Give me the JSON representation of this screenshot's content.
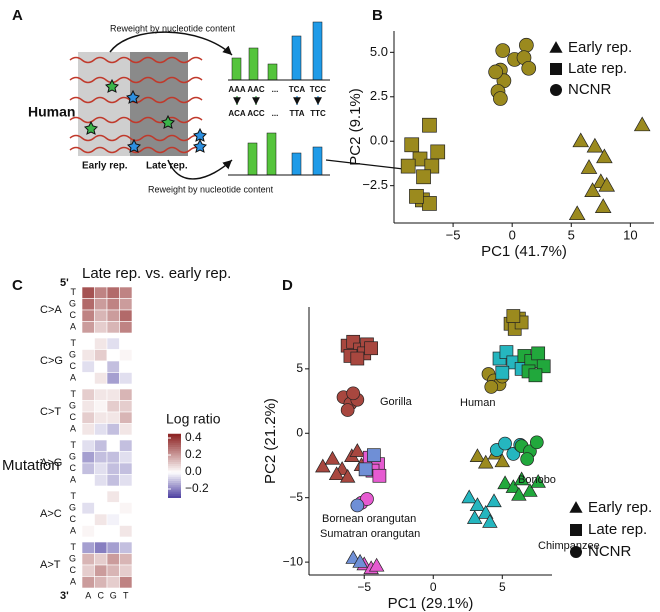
{
  "panel_labels": [
    "A",
    "B",
    "C",
    "D"
  ],
  "diagram": {
    "species": "Human",
    "early": "Early rep.",
    "late": "Late rep.",
    "reweight_top": "Reweight by nucleotide content",
    "reweight_bottom": "Reweight by nucleotide content",
    "contexts_top": [
      "AAA",
      "AAC",
      "...",
      "TCA",
      "TCC"
    ],
    "contexts_bottom": [
      "ACA",
      "ACC",
      "...",
      "TTA",
      "TTC"
    ]
  },
  "chart_data": [
    {
      "type": "scatter",
      "xlabel": "PC1 (41.7%)",
      "ylabel": "PC2 (9.1%)",
      "xlim": [
        -10,
        12
      ],
      "ylim": [
        -4.6,
        6.2
      ],
      "xticks": [
        {
          "value": -5,
          "label": "−5"
        },
        0,
        5,
        10
      ],
      "yticks": [
        {
          "value": -2.5,
          "label": "−2.5"
        },
        {
          "value": 0,
          "label": "0.0"
        },
        2.5,
        {
          "value": 5,
          "label": "5.0"
        }
      ],
      "legend": [
        {
          "name": "Early rep.",
          "marker": "triangle"
        },
        {
          "name": "Late rep.",
          "marker": "square"
        },
        {
          "name": "NCNR",
          "marker": "circle"
        }
      ],
      "series": [
        {
          "color": "#9b8a1e",
          "triangle": {
            "x": [
              11,
              5.8,
              7,
              7.8,
              6.5,
              7.5,
              6.8,
              8.0,
              7.7,
              5.5
            ],
            "y": [
              0.9,
              0,
              -0.3,
              -0.9,
              -1.5,
              -2.3,
              -2.8,
              -2.5,
              -3.7,
              -4.1
            ]
          },
          "square": {
            "x": [
              -7,
              -8.5,
              -7.8,
              -6.3,
              -6.8,
              -7.5,
              -8.8,
              -7.6,
              -7.0,
              -8.1
            ],
            "y": [
              0.9,
              -0.2,
              -1.0,
              -0.6,
              -1.4,
              -2.0,
              -1.4,
              -3.3,
              -3.5,
              -3.1
            ]
          },
          "circle": {
            "x": [
              -0.8,
              0.2,
              1.2,
              1.0,
              -1.0,
              -0.7,
              -1.2,
              -1.0,
              -1.4,
              1.4
            ],
            "y": [
              5.1,
              4.6,
              5.4,
              4.7,
              4.0,
              3.4,
              2.8,
              2.4,
              3.9,
              4.1
            ]
          }
        }
      ]
    },
    {
      "type": "heatmap",
      "title": "Late rep. vs. early rep.",
      "ylabel": "Mutation",
      "five_prime": "5'",
      "three_prime": "3'",
      "rows": [
        "C>A",
        "C>G",
        "C>T",
        "A>G",
        "A>C",
        "A>T"
      ],
      "row_contexts": [
        "T",
        "G",
        "C",
        "A"
      ],
      "columns": [
        "A",
        "C",
        "G",
        "T"
      ],
      "values": [
        [
          [
            0.35,
            0.25,
            0.3,
            0.25
          ],
          [
            0.3,
            0.2,
            0.25,
            0.2
          ],
          [
            0.25,
            0.15,
            0.2,
            0.3
          ],
          [
            0.2,
            0.1,
            0.15,
            0.25
          ]
        ],
        [
          [
            0.0,
            0.05,
            -0.05,
            0.0
          ],
          [
            0.05,
            0.1,
            0.0,
            0.02
          ],
          [
            -0.05,
            0.0,
            -0.1,
            0.0
          ],
          [
            0.0,
            0.05,
            -0.15,
            -0.05
          ]
        ],
        [
          [
            0.1,
            0.05,
            0.05,
            0.15
          ],
          [
            0.05,
            0.02,
            0.1,
            0.1
          ],
          [
            0.1,
            0.05,
            0.05,
            0.15
          ],
          [
            0.05,
            -0.05,
            -0.1,
            0.05
          ]
        ],
        [
          [
            -0.05,
            -0.1,
            0.0,
            -0.1
          ],
          [
            -0.15,
            -0.1,
            -0.1,
            -0.05
          ],
          [
            -0.1,
            -0.05,
            -0.1,
            -0.1
          ],
          [
            0.0,
            -0.05,
            -0.1,
            -0.05
          ]
        ],
        [
          [
            0.0,
            0.0,
            0.05,
            0.0
          ],
          [
            -0.05,
            0.0,
            0.0,
            0.02
          ],
          [
            0.0,
            0.05,
            -0.02,
            0.0
          ],
          [
            0.02,
            0.0,
            0.0,
            0.05
          ]
        ],
        [
          [
            -0.15,
            -0.2,
            -0.15,
            -0.1
          ],
          [
            0.15,
            0.1,
            0.2,
            0.15
          ],
          [
            0.1,
            0.2,
            0.15,
            0.1
          ],
          [
            0.2,
            0.15,
            0.1,
            0.25
          ]
        ]
      ],
      "colorbar": {
        "title": "Log ratio",
        "lim": [
          -0.3,
          0.45
        ],
        "low": "#4b3ea0",
        "mid": "#ffffff",
        "high": "#8b2020",
        "ticks": [
          0.4,
          0.2,
          {
            "value": 0,
            "label": "0.0"
          },
          {
            "value": -0.2,
            "label": "−0.2"
          }
        ]
      }
    },
    {
      "type": "scatter",
      "xlabel": "PC1 (29.1%)",
      "ylabel": "PC2 (21.2%)",
      "xlim": [
        -9,
        8.6
      ],
      "ylim": [
        -11,
        9.8
      ],
      "xticks": [
        {
          "value": -5,
          "label": "−5"
        },
        0,
        5
      ],
      "yticks": [
        {
          "value": -10,
          "label": "−10"
        },
        {
          "value": -5,
          "label": "−5"
        },
        0,
        5
      ],
      "legend": [
        {
          "name": "Early rep.",
          "marker": "triangle"
        },
        {
          "name": "Late rep.",
          "marker": "square"
        },
        {
          "name": "NCNR",
          "marker": "circle"
        }
      ],
      "series": [
        {
          "name": "Gorilla",
          "color": "#a8473f",
          "square": {
            "x": [
              -6.2,
              -5.8,
              -5.3,
              -4.8,
              -6.0,
              -5.0,
              -5.5,
              -4.5
            ],
            "y": [
              6.8,
              7.1,
              6.5,
              6.9,
              6.0,
              6.2,
              5.8,
              6.6
            ]
          },
          "circle": {
            "x": [
              -6.5,
              -6.0,
              -5.5,
              -6.2,
              -5.8
            ],
            "y": [
              2.8,
              2.3,
              2.6,
              1.8,
              3.1
            ]
          },
          "triangle": {
            "x": [
              -8.0,
              -7.3,
              -6.6,
              -5.9,
              -5.2,
              -4.6,
              -7.0,
              -6.2,
              -5.5
            ],
            "y": [
              -2.6,
              -2.0,
              -2.8,
              -1.8,
              -2.5,
              -2.2,
              -3.2,
              -3.4,
              -1.4
            ]
          }
        },
        {
          "name": "Bornean orangutan",
          "color": "#e65bd1",
          "square": {
            "x": [
              -4.6,
              -4.0,
              -4.4,
              -3.9
            ],
            "y": [
              -1.9,
              -2.4,
              -2.9,
              -3.3
            ]
          },
          "circle": {
            "x": [
              -5.2,
              -4.8
            ],
            "y": [
              -5.4,
              -5.1
            ]
          },
          "triangle": {
            "x": [
              -5.0,
              -4.5,
              -4.1
            ],
            "y": [
              -10.2,
              -10.5,
              -10.3
            ]
          }
        },
        {
          "name": "Sumatran orangutan",
          "color": "#6f8fd6",
          "square": {
            "x": [
              -4.9,
              -4.3
            ],
            "y": [
              -2.8,
              -1.7
            ]
          },
          "circle": {
            "x": [
              -5.5
            ],
            "y": [
              -5.6
            ]
          },
          "triangle": {
            "x": [
              -5.8,
              -5.3
            ],
            "y": [
              -9.7,
              -10.0
            ]
          }
        },
        {
          "name": "Human",
          "color": "#9b8a1e",
          "square": {
            "x": [
              5.6,
              6.2,
              5.9,
              6.4,
              5.8
            ],
            "y": [
              8.5,
              8.9,
              8.1,
              8.6,
              9.1
            ]
          },
          "circle": {
            "x": [
              4.0,
              4.4,
              4.8,
              4.2,
              5.0
            ],
            "y": [
              4.6,
              4.1,
              3.8,
              3.6,
              4.4
            ]
          },
          "triangle": {
            "x": [
              3.2,
              3.8,
              4.5,
              5.0
            ],
            "y": [
              -1.8,
              -2.3,
              -1.6,
              -2.2
            ]
          }
        },
        {
          "name": "Chimpanzee",
          "color": "#25b6bf",
          "square": {
            "x": [
              4.8,
              5.3,
              5.8,
              6.4,
              5.0
            ],
            "y": [
              5.8,
              6.3,
              5.5,
              5.0,
              4.7
            ]
          },
          "circle": {
            "x": [
              4.6,
              5.2,
              5.8,
              6.3
            ],
            "y": [
              -1.3,
              -0.8,
              -1.6,
              -0.9
            ]
          },
          "triangle": {
            "x": [
              2.6,
              3.2,
              3.8,
              4.4,
              3.0,
              4.1
            ],
            "y": [
              -5.0,
              -5.6,
              -6.2,
              -5.3,
              -6.6,
              -6.9
            ]
          }
        },
        {
          "name": "Bonobo",
          "color": "#21a83c",
          "square": {
            "x": [
              6.6,
              7.1,
              7.6,
              8.0,
              6.9,
              7.4
            ],
            "y": [
              6.0,
              5.6,
              6.2,
              5.2,
              4.8,
              4.5
            ]
          },
          "circle": {
            "x": [
              6.4,
              7.0,
              7.5,
              6.8
            ],
            "y": [
              -1.0,
              -1.4,
              -0.7,
              -2.0
            ]
          },
          "triangle": {
            "x": [
              5.2,
              5.8,
              6.4,
              7.0,
              7.6,
              6.2
            ],
            "y": [
              -3.9,
              -4.2,
              -3.6,
              -4.5,
              -3.8,
              -4.8
            ]
          }
        }
      ]
    }
  ]
}
